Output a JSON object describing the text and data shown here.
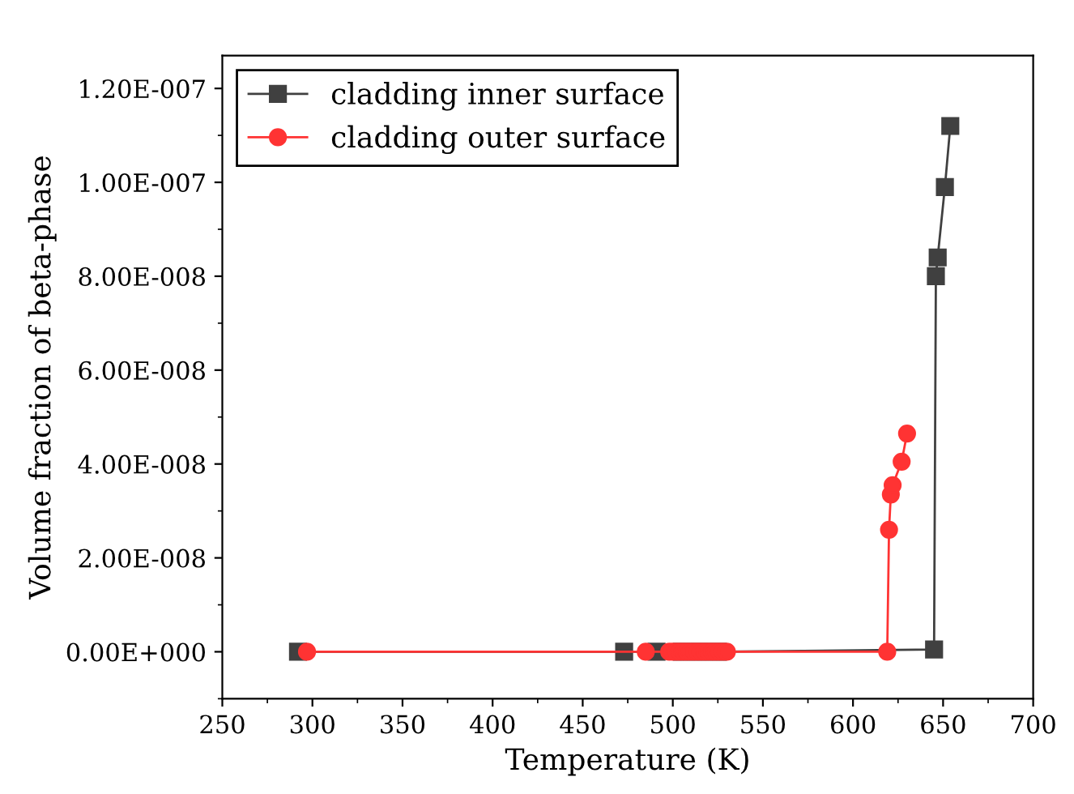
{
  "chart_data": {
    "type": "line",
    "xlabel": "Temperature (K)",
    "ylabel": "Volume fraction of beta-phase",
    "series": [
      {
        "name": "cladding inner surface",
        "color": "#404040",
        "marker": "square",
        "x": [
          292,
          473,
          491,
          505,
          515,
          525,
          645,
          646,
          647,
          651,
          654
        ],
        "values": [
          0,
          0,
          0,
          0,
          0,
          0,
          5e-10,
          8e-08,
          8.4e-08,
          9.9e-08,
          1.12e-07
        ]
      },
      {
        "name": "cladding outer surface",
        "color": "#ff3333",
        "marker": "circle",
        "x": [
          297,
          485,
          498,
          500,
          502,
          504,
          506,
          508,
          510,
          512,
          514,
          516,
          518,
          520,
          522,
          524,
          526,
          528,
          530,
          619,
          620,
          621,
          622,
          627,
          630
        ],
        "values": [
          0,
          0,
          0,
          0,
          0,
          0,
          0,
          0,
          0,
          0,
          0,
          0,
          0,
          0,
          0,
          0,
          0,
          0,
          0,
          0,
          2.6e-08,
          3.35e-08,
          3.55e-08,
          4.05e-08,
          4.65e-08
        ]
      }
    ],
    "xlim": [
      250,
      700
    ],
    "xticks": [
      250,
      300,
      350,
      400,
      450,
      500,
      550,
      600,
      650,
      700
    ],
    "ylim": [
      -1e-08,
      1.27e-07
    ],
    "yticks": [
      {
        "value": 0,
        "label": "0.00E+000"
      },
      {
        "value": 2e-08,
        "label": "2.00E-008"
      },
      {
        "value": 4e-08,
        "label": "4.00E-008"
      },
      {
        "value": 6e-08,
        "label": "6.00E-008"
      },
      {
        "value": 8e-08,
        "label": "8.00E-008"
      },
      {
        "value": 1e-07,
        "label": "1.00E-007"
      },
      {
        "value": 1.2e-07,
        "label": "1.20E-007"
      }
    ],
    "legend": "top left",
    "grid": false
  }
}
